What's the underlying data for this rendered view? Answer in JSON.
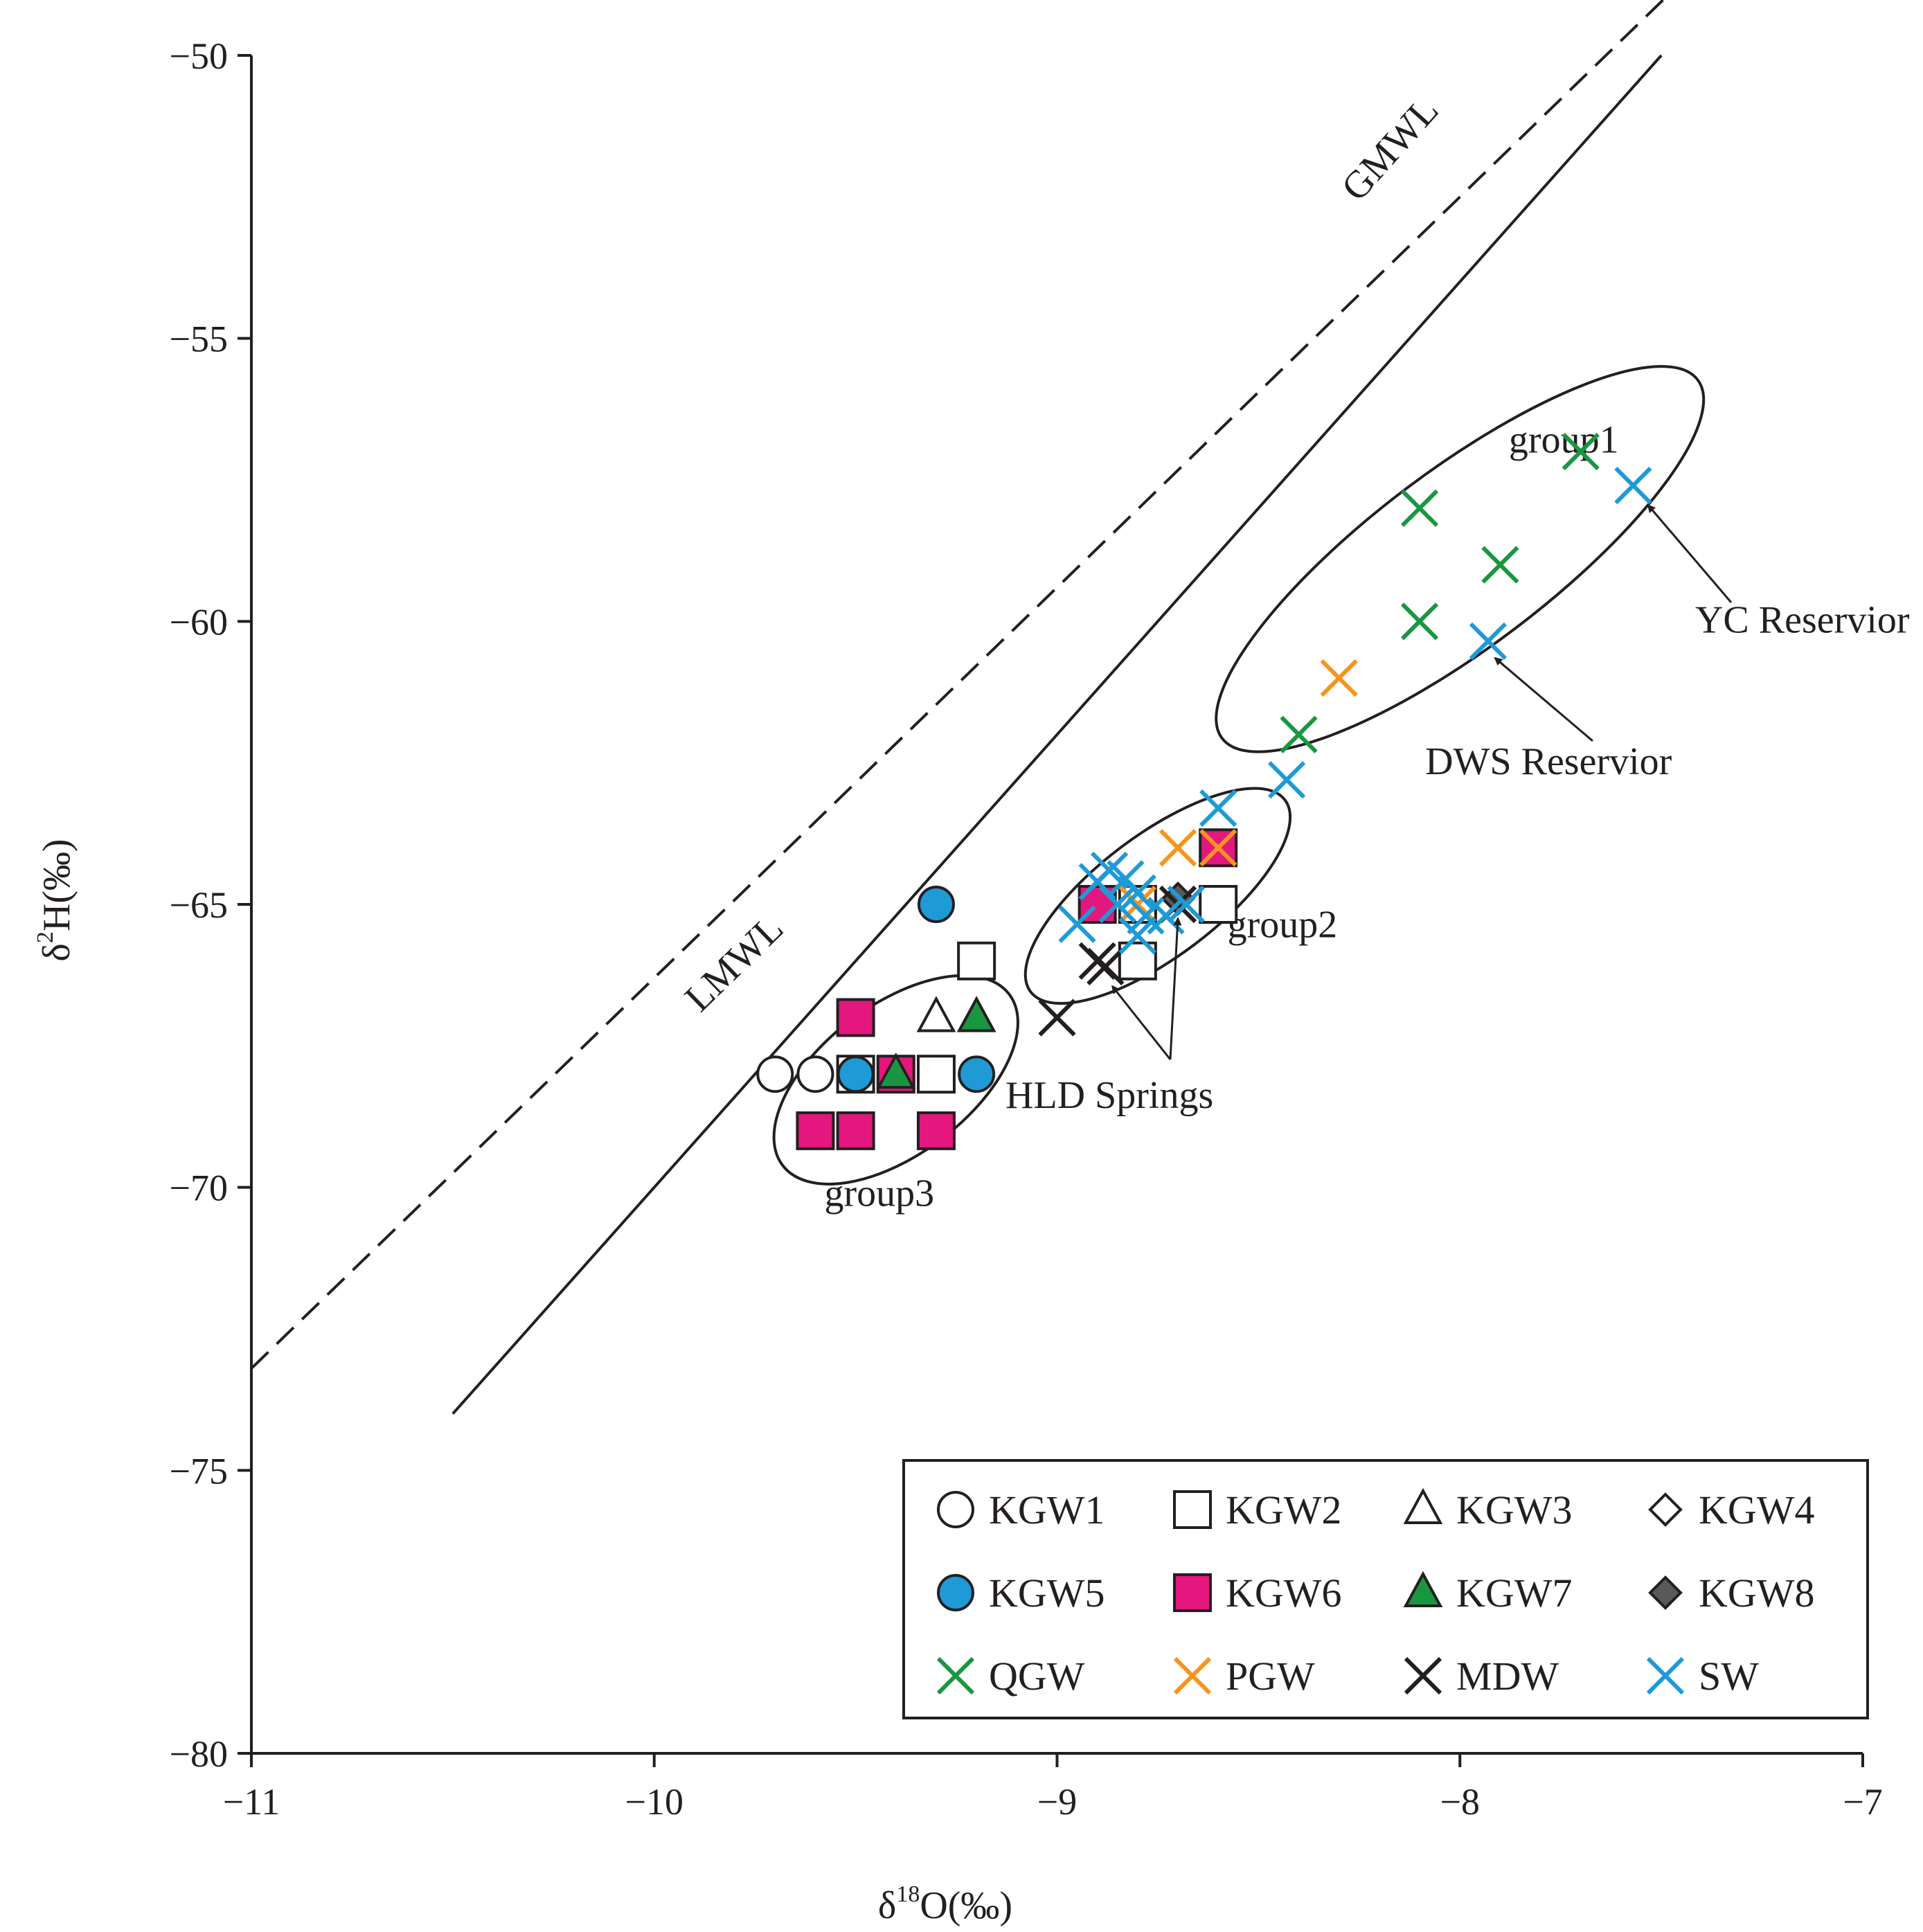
{
  "chart_data": {
    "type": "scatter",
    "xlabel": "δ18O(‰)",
    "ylabel": "δ2H(‰)",
    "xlabel_parts": {
      "delta": "δ",
      "sup": "18",
      "rest": "O(‰)"
    },
    "ylabel_parts": {
      "delta": "δ",
      "sup": "2",
      "rest": "H(‰)"
    },
    "xlim": [
      -11,
      -7
    ],
    "ylim": [
      -80,
      -50
    ],
    "xticks": [
      -11,
      -10,
      -9,
      -8,
      -7
    ],
    "yticks": [
      -80,
      -75,
      -70,
      -65,
      -60,
      -55,
      -50
    ],
    "xtick_labels": [
      "−11",
      "−10",
      "−9",
      "−8",
      "−7"
    ],
    "ytick_labels": [
      "−80",
      "−75",
      "−70",
      "−65",
      "−60",
      "−55",
      "−50"
    ],
    "grid": false,
    "legend_position": "bottom-right",
    "lines": [
      {
        "name": "GMWL",
        "style": "solid",
        "label": "GMWL",
        "slope": 8,
        "intercept": 10,
        "x_range": [
          -10.5,
          -7.5
        ]
      },
      {
        "name": "LMWL",
        "style": "dashed",
        "label": "LMWL",
        "slope": 6.9,
        "intercept": 2.7,
        "x_range": [
          -11,
          -7.33
        ]
      }
    ],
    "groups": [
      {
        "name": "group1",
        "label": "group1",
        "center": [
          -8.0,
          -58.9
        ],
        "axis_angle_deg": 37
      },
      {
        "name": "group2",
        "label": "group2",
        "center": [
          -8.75,
          -64.85
        ],
        "axis_angle_deg": 37
      },
      {
        "name": "group3",
        "label": "group3",
        "center": [
          -9.4,
          -68.1
        ],
        "axis_angle_deg": 37
      }
    ],
    "annotations": [
      {
        "text": "YC Reservior",
        "target": [
          -7.55,
          -57.8
        ],
        "label_at": [
          -7.15,
          -60.2
        ]
      },
      {
        "text": "DWS Reservior",
        "target": [
          -7.93,
          -60.5
        ],
        "label_at": [
          -7.78,
          -62.7
        ]
      },
      {
        "text": "HLD Springs",
        "target": [
          -8.88,
          -66.3
        ],
        "label_at": [
          -8.87,
          -68.6
        ],
        "second_target": [
          -8.7,
          -65.1
        ]
      }
    ],
    "series": [
      {
        "name": "KGW1",
        "marker": "circle",
        "fill": "#ffffff",
        "points": [
          [
            -9.7,
            -68
          ],
          [
            -9.6,
            -68
          ]
        ]
      },
      {
        "name": "KGW2",
        "marker": "square",
        "fill": "#ffffff",
        "points": [
          [
            -9.2,
            -66
          ],
          [
            -9.3,
            -68
          ],
          [
            -9.5,
            -68
          ],
          [
            -8.8,
            -66
          ],
          [
            -8.6,
            -65
          ],
          [
            -8.8,
            -65
          ]
        ]
      },
      {
        "name": "KGW3",
        "marker": "triangle",
        "fill": "#ffffff",
        "points": [
          [
            -9.3,
            -67
          ],
          [
            -9.2,
            -67
          ]
        ]
      },
      {
        "name": "KGW4",
        "marker": "diamond",
        "fill": "#ffffff",
        "points": []
      },
      {
        "name": "KGW5",
        "marker": "circle",
        "fill": "#1e9ad6",
        "points": [
          [
            -9.3,
            -65
          ],
          [
            -9.5,
            -68
          ],
          [
            -9.2,
            -68
          ]
        ]
      },
      {
        "name": "KGW6",
        "marker": "square",
        "fill": "#e3177d",
        "points": [
          [
            -9.5,
            -67
          ],
          [
            -9.4,
            -68
          ],
          [
            -9.6,
            -69
          ],
          [
            -9.5,
            -69
          ],
          [
            -9.3,
            -69
          ],
          [
            -8.9,
            -65
          ],
          [
            -8.6,
            -64
          ]
        ]
      },
      {
        "name": "KGW7",
        "marker": "triangle",
        "fill": "#1a9641",
        "points": [
          [
            -9.2,
            -67
          ],
          [
            -9.4,
            -68
          ]
        ]
      },
      {
        "name": "KGW8",
        "marker": "diamond",
        "fill": "#595959",
        "points": [
          [
            -8.7,
            -64.9
          ]
        ]
      },
      {
        "name": "QGW",
        "marker": "x",
        "color": "#1a9641",
        "points": [
          [
            -7.7,
            -57
          ],
          [
            -8.1,
            -58
          ],
          [
            -7.9,
            -59
          ],
          [
            -8.1,
            -60
          ],
          [
            -8.4,
            -62
          ]
        ]
      },
      {
        "name": "PGW",
        "marker": "x",
        "color": "#f7941d",
        "points": [
          [
            -8.3,
            -61
          ],
          [
            -8.7,
            -64
          ],
          [
            -8.6,
            -64
          ],
          [
            -8.8,
            -65
          ],
          [
            -8.7,
            -65
          ]
        ]
      },
      {
        "name": "MDW",
        "marker": "x",
        "color": "#231f20",
        "points": [
          [
            -9.0,
            -67
          ],
          [
            -8.9,
            -66
          ],
          [
            -8.88,
            -66.1
          ],
          [
            -8.7,
            -65
          ]
        ]
      },
      {
        "name": "SW",
        "marker": "x",
        "color": "#1e9ad6",
        "points": [
          [
            -7.57,
            -57.6
          ],
          [
            -7.93,
            -60.35
          ],
          [
            -8.43,
            -62.8
          ],
          [
            -8.6,
            -63.3
          ],
          [
            -8.95,
            -65.35
          ],
          [
            -8.9,
            -64.6
          ],
          [
            -8.87,
            -64.4
          ],
          [
            -8.83,
            -64.55
          ],
          [
            -8.8,
            -64.8
          ],
          [
            -8.85,
            -65.0
          ],
          [
            -8.78,
            -65.2
          ],
          [
            -8.8,
            -65.55
          ],
          [
            -8.73,
            -65.2
          ],
          [
            -8.68,
            -65.0
          ]
        ]
      }
    ]
  }
}
